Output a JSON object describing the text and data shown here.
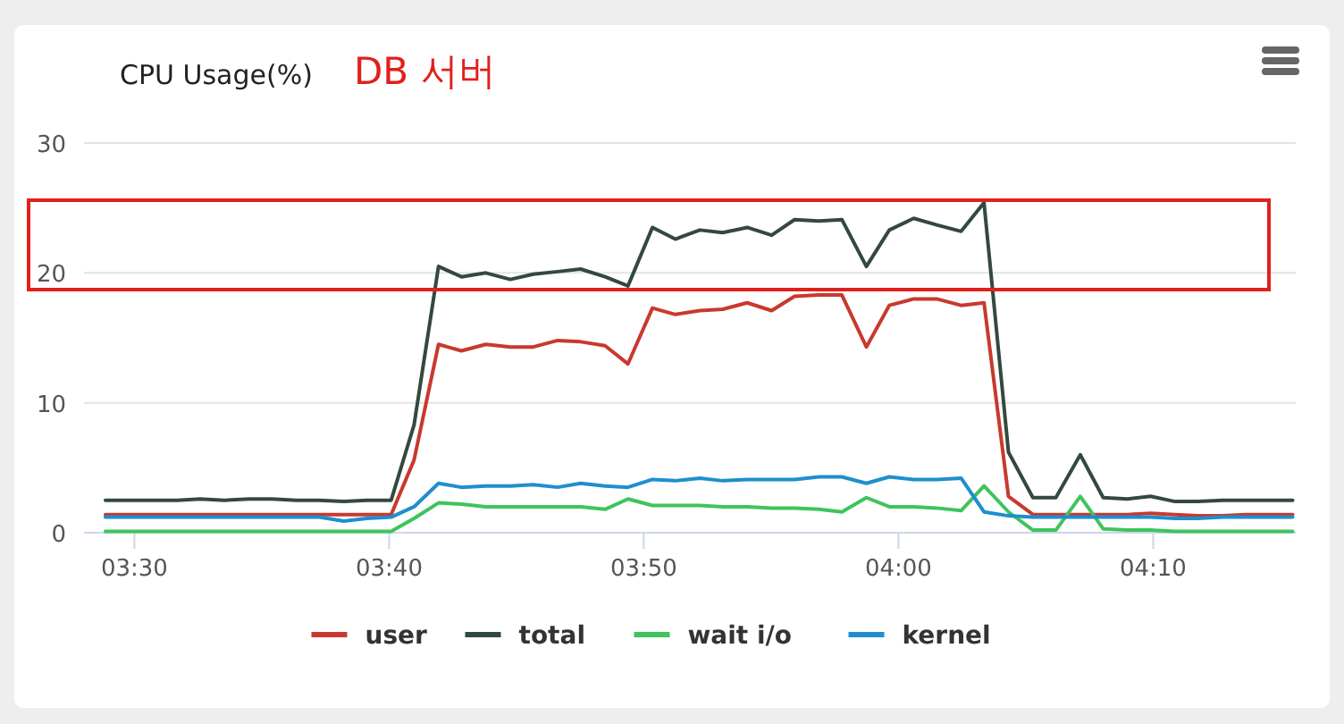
{
  "chart_data": {
    "type": "line",
    "title": "CPU Usage(%)",
    "subtitle": "DB 서버",
    "x": [
      3.481,
      3.497,
      3.512,
      3.528,
      3.543,
      3.559,
      3.575,
      3.59,
      3.606,
      3.621,
      3.637,
      3.652,
      3.668,
      3.683,
      3.699,
      3.714,
      3.73,
      3.746,
      3.761,
      3.777,
      3.792,
      3.808,
      3.823,
      3.839,
      3.854,
      3.87,
      3.885,
      3.901,
      3.917,
      3.932,
      3.948,
      3.963,
      3.979,
      3.994,
      4.01,
      4.025,
      4.041,
      4.056,
      4.072,
      4.088,
      4.103,
      4.119,
      4.134,
      4.15,
      4.165,
      4.181,
      4.196,
      4.212,
      4.227,
      4.243,
      4.258
    ],
    "series": [
      {
        "name": "user",
        "color": "#c8392f",
        "values": [
          1.4,
          1.4,
          1.4,
          1.4,
          1.4,
          1.4,
          1.4,
          1.4,
          1.4,
          1.4,
          1.4,
          1.4,
          1.4,
          5.6,
          14.5,
          14.0,
          14.5,
          14.3,
          14.3,
          14.8,
          14.7,
          14.4,
          13.0,
          17.3,
          16.8,
          17.1,
          17.2,
          17.7,
          17.1,
          18.2,
          18.3,
          18.3,
          14.3,
          17.5,
          18.0,
          18.0,
          17.5,
          17.7,
          2.8,
          1.4,
          1.4,
          1.4,
          1.4,
          1.4,
          1.5,
          1.4,
          1.3,
          1.3,
          1.4,
          1.4,
          1.4
        ]
      },
      {
        "name": "total",
        "color": "#34493e",
        "values": [
          2.5,
          2.5,
          2.5,
          2.5,
          2.6,
          2.5,
          2.6,
          2.6,
          2.5,
          2.5,
          2.4,
          2.5,
          2.5,
          8.3,
          20.5,
          19.7,
          20.0,
          19.5,
          19.9,
          20.1,
          20.3,
          19.7,
          19.0,
          23.5,
          22.6,
          23.3,
          23.1,
          23.5,
          22.9,
          24.1,
          24.0,
          24.1,
          20.5,
          23.3,
          24.2,
          23.7,
          23.2,
          25.4,
          6.2,
          2.7,
          2.7,
          6.0,
          2.7,
          2.6,
          2.8,
          2.4,
          2.4,
          2.5,
          2.5,
          2.5,
          2.5
        ]
      },
      {
        "name": "wait i/o",
        "color": "#3ec45c",
        "values": [
          0.1,
          0.1,
          0.1,
          0.1,
          0.1,
          0.1,
          0.1,
          0.1,
          0.1,
          0.1,
          0.1,
          0.1,
          0.1,
          1.1,
          2.3,
          2.2,
          2.0,
          2.0,
          2.0,
          2.0,
          2.0,
          1.8,
          2.6,
          2.1,
          2.1,
          2.1,
          2.0,
          2.0,
          1.9,
          1.9,
          1.8,
          1.6,
          2.7,
          2.0,
          2.0,
          1.9,
          1.7,
          3.6,
          1.6,
          0.2,
          0.2,
          2.8,
          0.3,
          0.2,
          0.2,
          0.1,
          0.1,
          0.1,
          0.1,
          0.1,
          0.1
        ]
      },
      {
        "name": "kernel",
        "color": "#1f8ecf",
        "values": [
          1.2,
          1.2,
          1.2,
          1.2,
          1.2,
          1.2,
          1.2,
          1.2,
          1.2,
          1.2,
          0.9,
          1.1,
          1.2,
          2.0,
          3.8,
          3.5,
          3.6,
          3.6,
          3.7,
          3.5,
          3.8,
          3.6,
          3.5,
          4.1,
          4.0,
          4.2,
          4.0,
          4.1,
          4.1,
          4.1,
          4.3,
          4.3,
          3.8,
          4.3,
          4.1,
          4.1,
          4.2,
          1.6,
          1.3,
          1.2,
          1.2,
          1.2,
          1.2,
          1.2,
          1.2,
          1.1,
          1.1,
          1.2,
          1.2,
          1.2,
          1.2
        ]
      }
    ],
    "xlim": [
      3.467,
      4.26
    ],
    "xticks": [
      {
        "value": 3.5,
        "label": "03:30"
      },
      {
        "value": 3.6667,
        "label": "03:40"
      },
      {
        "value": 3.8333,
        "label": "03:50"
      },
      {
        "value": 4,
        "label": "04:00"
      },
      {
        "value": 4.1667,
        "label": "04:10"
      }
    ],
    "ylim": [
      0,
      30
    ],
    "yticks": [
      0,
      10,
      20,
      30
    ],
    "grid": "y",
    "legend": "bottom",
    "marker": "none",
    "line_style": "solid"
  }
}
